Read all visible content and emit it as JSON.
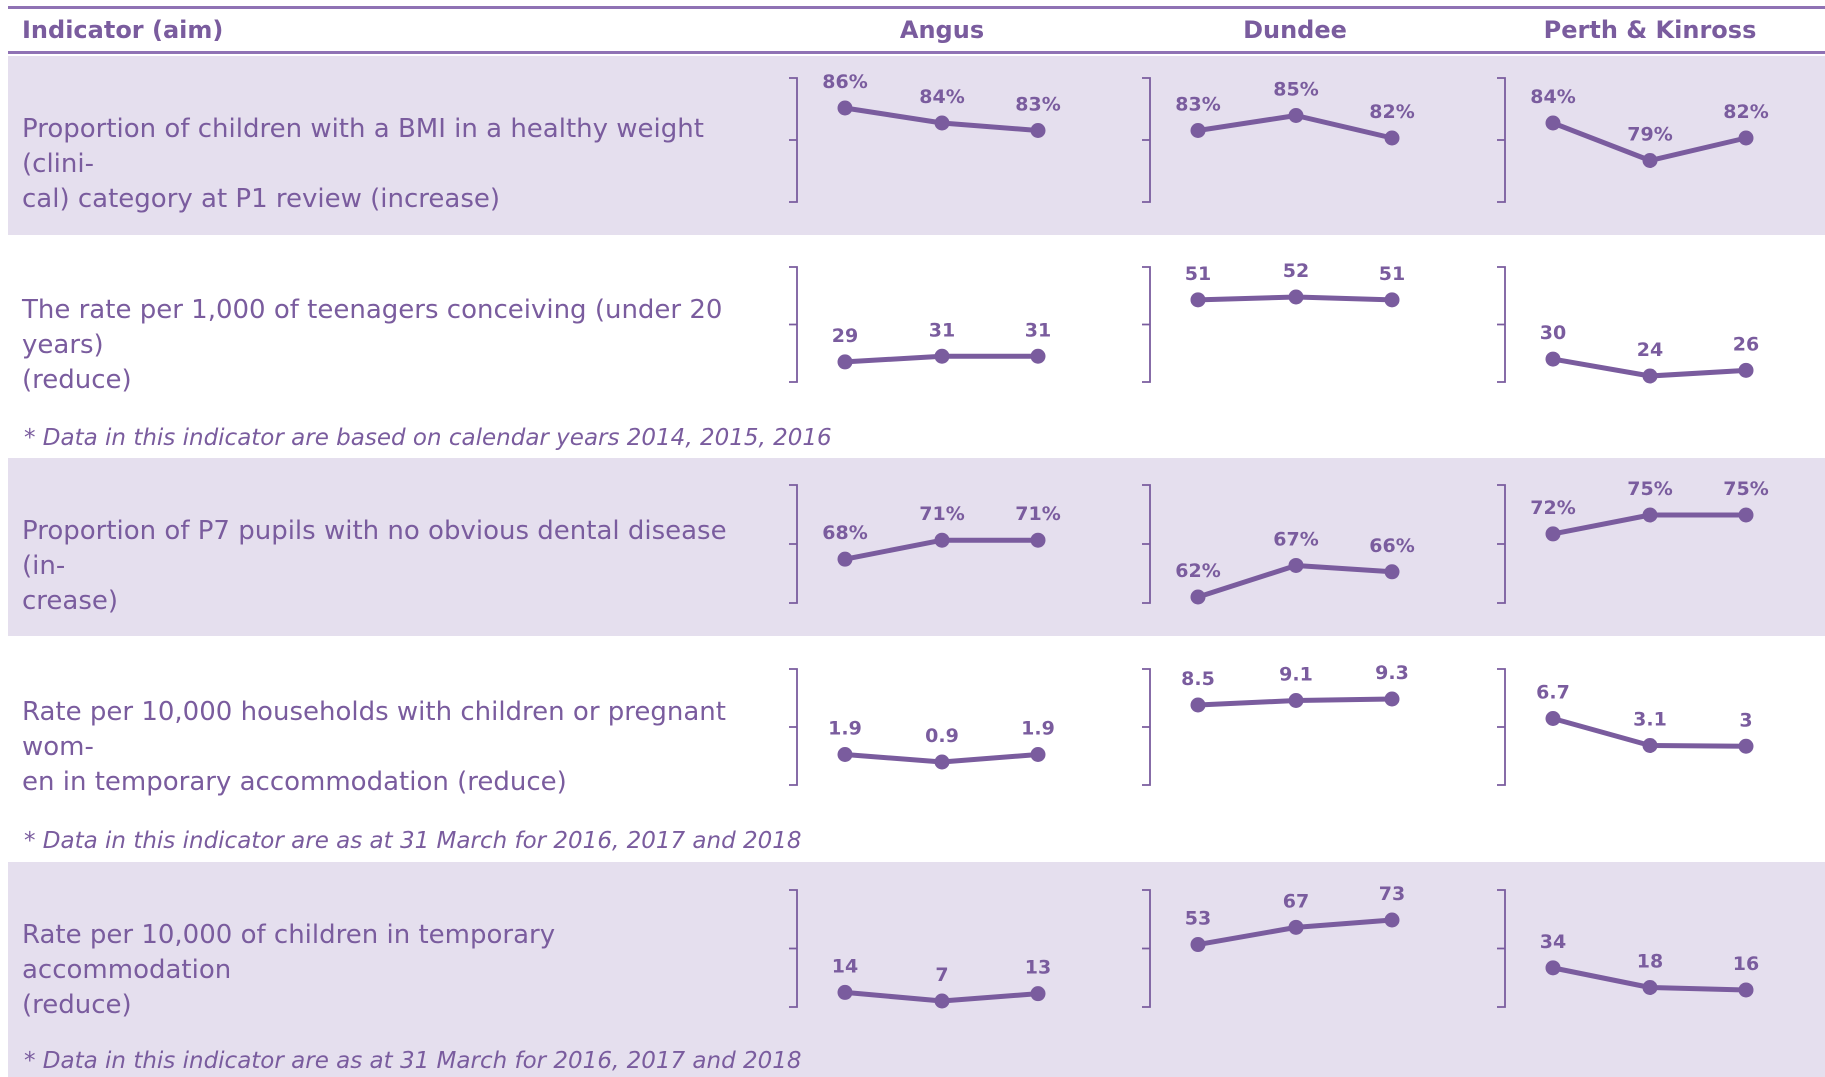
{
  "colors": {
    "accent": "#7a5c9e",
    "rule": "#8f72b4",
    "band_shaded": "#e5dfee",
    "band_white": "#ffffff",
    "text": "#7a5c9e",
    "axis": "#7a5c9e"
  },
  "header": {
    "indicator_label": "Indicator (aim)",
    "areas": [
      "Angus",
      "Dundee",
      "Perth & Kinross"
    ]
  },
  "rows": [
    {
      "text": "Proportion of children with a BMI in a healthy weight (clini-\ncal) category at P1 review (increase)",
      "note": "",
      "shaded": true
    },
    {
      "text": "The rate per 1,000 of teenagers conceiving (under 20 years)\n(reduce)",
      "note": "* Data in this indicator are based on calendar years 2014, 2015, 2016",
      "shaded": false
    },
    {
      "text": "Proportion of P7 pupils with no obvious dental disease (in-\ncrease)",
      "note": "",
      "shaded": true
    },
    {
      "text": "Rate per 10,000 households with children or pregnant wom-\nen in temporary accommodation (reduce)",
      "note": "* Data in this indicator are as at 31 March for 2016, 2017 and 2018",
      "shaded": false
    },
    {
      "text": "Rate per 10,000 of children in temporary accommodation\n(reduce)",
      "note": "* Data in this indicator are as at 31 March for 2016, 2017 and 2018",
      "shaded": true
    }
  ],
  "chart_data": [
    {
      "type": "line",
      "title": "Proportion of children with a BMI in a healthy weight (clinical) category at P1 review (increase)",
      "series": [
        {
          "name": "Angus",
          "values": [
            86,
            84,
            83
          ],
          "labels": [
            "86%",
            "84%",
            "83%"
          ]
        },
        {
          "name": "Dundee",
          "values": [
            83,
            85,
            82
          ],
          "labels": [
            "83%",
            "85%",
            "82%"
          ]
        },
        {
          "name": "Perth & Kinross",
          "values": [
            84,
            79,
            82
          ],
          "labels": [
            "84%",
            "79%",
            "82%"
          ]
        }
      ]
    },
    {
      "type": "line",
      "title": "The rate per 1,000 of teenagers conceiving (under 20 years) (reduce)",
      "series": [
        {
          "name": "Angus",
          "values": [
            29,
            31,
            31
          ],
          "labels": [
            "29",
            "31",
            "31"
          ]
        },
        {
          "name": "Dundee",
          "values": [
            51,
            52,
            51
          ],
          "labels": [
            "51",
            "52",
            "51"
          ]
        },
        {
          "name": "Perth & Kinross",
          "values": [
            30,
            24,
            26
          ],
          "labels": [
            "30",
            "24",
            "26"
          ]
        }
      ]
    },
    {
      "type": "line",
      "title": "Proportion of P7 pupils with no obvious dental disease (increase)",
      "series": [
        {
          "name": "Angus",
          "values": [
            68,
            71,
            71
          ],
          "labels": [
            "68%",
            "71%",
            "71%"
          ]
        },
        {
          "name": "Dundee",
          "values": [
            62,
            67,
            66
          ],
          "labels": [
            "62%",
            "67%",
            "66%"
          ]
        },
        {
          "name": "Perth & Kinross",
          "values": [
            72,
            75,
            75
          ],
          "labels": [
            "72%",
            "75%",
            "75%"
          ]
        }
      ]
    },
    {
      "type": "line",
      "title": "Rate per 10,000 households with children or pregnant women in temporary accommodation (reduce)",
      "series": [
        {
          "name": "Angus",
          "values": [
            1.9,
            0.9,
            1.9
          ],
          "labels": [
            "1.9",
            "0.9",
            "1.9"
          ]
        },
        {
          "name": "Dundee",
          "values": [
            8.5,
            9.1,
            9.3
          ],
          "labels": [
            "8.5",
            "9.1",
            "9.3"
          ]
        },
        {
          "name": "Perth & Kinross",
          "values": [
            6.7,
            3.1,
            3
          ],
          "labels": [
            "6.7",
            "3.1",
            "3"
          ]
        }
      ]
    },
    {
      "type": "line",
      "title": "Rate per 10,000 of children in temporary accommodation (reduce)",
      "series": [
        {
          "name": "Angus",
          "values": [
            14,
            7,
            13
          ],
          "labels": [
            "14",
            "7",
            "13"
          ]
        },
        {
          "name": "Dundee",
          "values": [
            53,
            67,
            73
          ],
          "labels": [
            "53",
            "67",
            "73"
          ]
        },
        {
          "name": "Perth & Kinross",
          "values": [
            34,
            18,
            16
          ],
          "labels": [
            "34",
            "18",
            "16"
          ]
        }
      ]
    }
  ]
}
